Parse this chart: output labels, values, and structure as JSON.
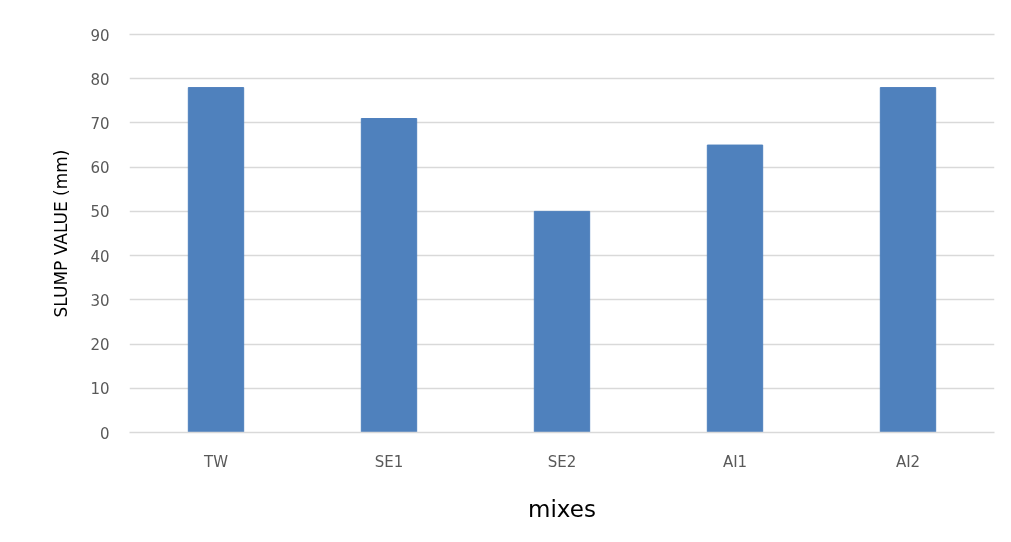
{
  "chart_data": {
    "type": "bar",
    "xlabel": "mixes",
    "ylabel": "SLUMP VALUE (mm)",
    "categories": [
      "TW",
      "SE1",
      "SE2",
      "AI1",
      "AI2"
    ],
    "values": [
      78,
      71,
      50,
      65,
      78
    ],
    "color": "#4f81bd",
    "ylim": [
      0,
      90
    ],
    "yticks": [
      0,
      10,
      20,
      30,
      40,
      50,
      60,
      70,
      80,
      90
    ],
    "grid": "y"
  }
}
